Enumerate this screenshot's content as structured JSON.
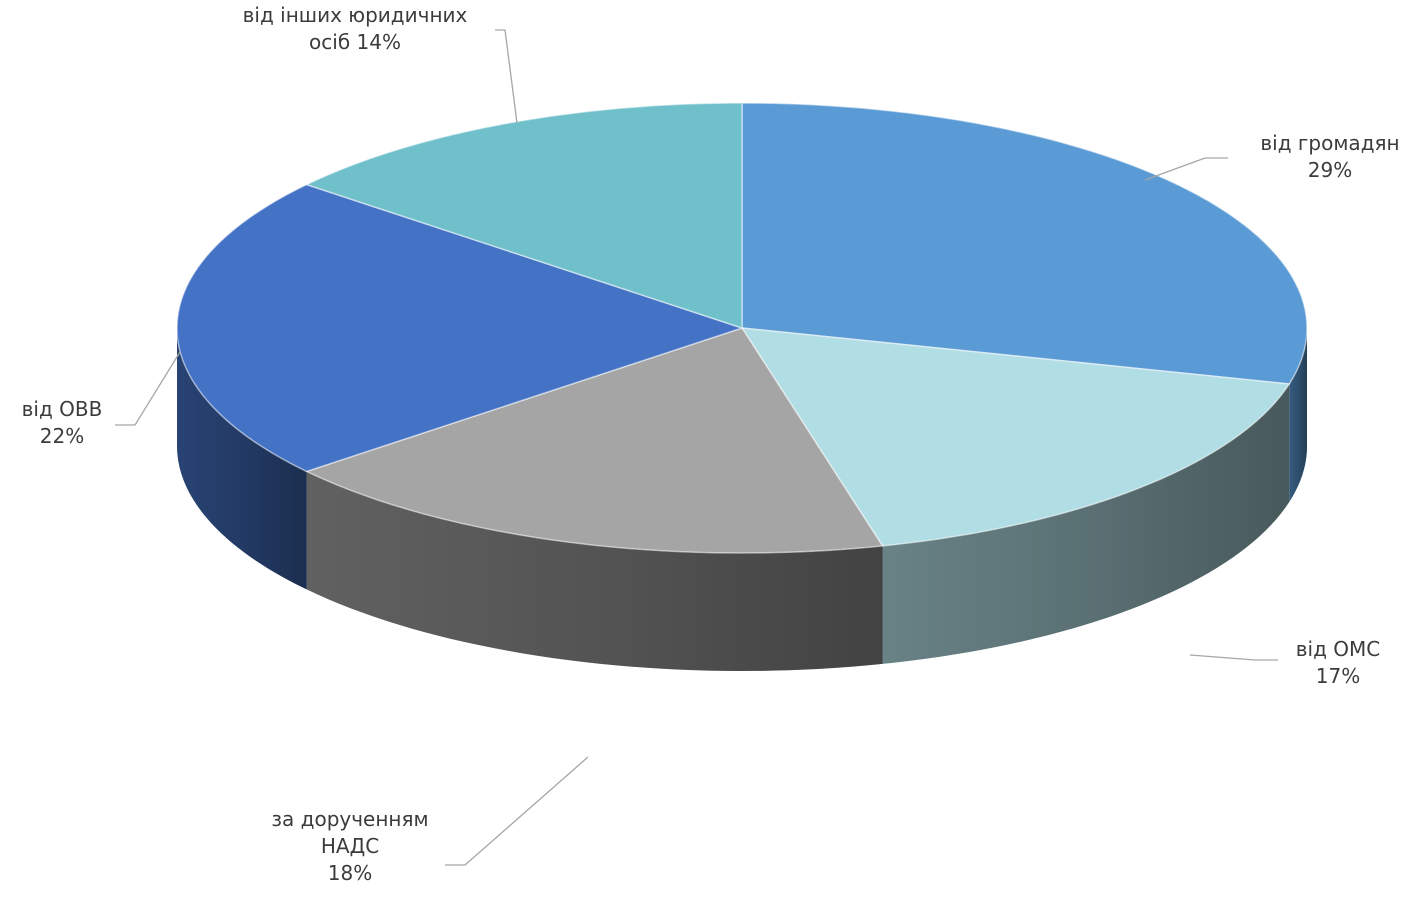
{
  "chart_data": {
    "type": "pie",
    "style": "3d",
    "title": "",
    "slices": [
      {
        "label_lines": [
          "від громадян",
          "29%"
        ],
        "value": 29,
        "color": "#5b9bd5"
      },
      {
        "label_lines": [
          "від ОМС",
          "17%"
        ],
        "value": 17,
        "color": "#b1dde4"
      },
      {
        "label_lines": [
          "за дорученням",
          "НАДС",
          "18%"
        ],
        "value": 18,
        "color": "#a5a5a5"
      },
      {
        "label_lines": [
          "від ОВВ",
          "22%"
        ],
        "value": 22,
        "color": "#4472c4"
      },
      {
        "label_lines": [
          "від інших юридичних",
          "осіб 14%"
        ],
        "value": 14,
        "color": "#70c0cc"
      }
    ],
    "legend": "none",
    "data_labels": "outside with leader lines"
  }
}
